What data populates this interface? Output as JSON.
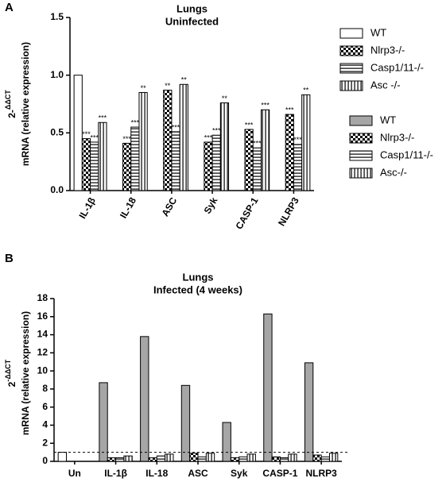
{
  "chart_data": [
    {
      "type": "bar",
      "panel": "A",
      "title": "Lungs",
      "subtitle": "Uninfected",
      "ylabel_base": "2-",
      "ylabel_sup": "ΔΔCT",
      "ylabel": "mRNA (relative expression)",
      "categories": [
        "IL-1β",
        "IL-18",
        "ASC",
        "Syk",
        "CASP-1",
        "NLRP3"
      ],
      "series": [
        {
          "name": "WT",
          "color": "#ffffff",
          "pattern": "solid",
          "values": [
            1.0,
            null,
            null,
            null,
            null,
            null
          ],
          "stars": [
            null,
            null,
            null,
            null,
            null,
            null
          ]
        },
        {
          "name": "Nlrp3-/-",
          "color": "#000000",
          "pattern": "checker",
          "values": [
            0.45,
            0.41,
            0.87,
            0.42,
            0.53,
            0.66
          ],
          "stars": [
            "***",
            "***",
            "**",
            "***",
            "***",
            "***"
          ]
        },
        {
          "name": "Casp1/11-/-",
          "color": "#000000",
          "pattern": "hlines",
          "values": [
            0.42,
            0.55,
            0.51,
            0.48,
            0.37,
            0.4
          ],
          "stars": [
            "***",
            "***",
            "***",
            "***",
            "***",
            "***"
          ]
        },
        {
          "name": "Asc -/-",
          "color": "#000000",
          "pattern": "vlines",
          "values": [
            0.59,
            0.85,
            0.92,
            0.76,
            0.7,
            0.83
          ],
          "stars": [
            "***",
            "**",
            "**",
            "**",
            "***",
            "**"
          ]
        }
      ],
      "ylim": [
        0,
        1.5
      ],
      "yticks": [
        {
          "value": 0,
          "label": "0.0"
        },
        {
          "value": 0.5,
          "label": "0.5"
        },
        {
          "value": 1,
          "label": "1.0"
        },
        {
          "value": 1.5,
          "label": "1.5"
        }
      ]
    },
    {
      "type": "bar",
      "panel": "B",
      "title": "Lungs",
      "subtitle": "Infected (4 weeks)",
      "ylabel_base": "2",
      "ylabel_sup": "-ΔΔCT",
      "ylabel": "mRNA (relative expression)",
      "categories": [
        "Un",
        "IL-1β",
        "IL-18",
        "ASC",
        "Syk",
        "CASP-1",
        "NLRP3"
      ],
      "series": [
        {
          "name": "WT",
          "color": "#a6a6a6",
          "pattern": "solid",
          "colors": [
            "#ffffff",
            "#a6a6a6",
            "#a6a6a6",
            "#a6a6a6",
            "#a6a6a6",
            "#a6a6a6",
            "#a6a6a6"
          ],
          "values": [
            1,
            8.7,
            13.8,
            8.4,
            4.3,
            16.3,
            10.9
          ]
        },
        {
          "name": "Nlrp3-/-",
          "color": "#000000",
          "pattern": "checker",
          "values": [
            null,
            0.4,
            0.4,
            0.9,
            0.4,
            0.5,
            0.7
          ]
        },
        {
          "name": "Casp1/11-/-",
          "color": "#000000",
          "pattern": "hlines",
          "values": [
            null,
            0.4,
            0.6,
            0.5,
            0.5,
            0.4,
            0.5
          ]
        },
        {
          "name": "Asc-/-",
          "color": "#000000",
          "pattern": "vlines",
          "values": [
            null,
            0.6,
            0.8,
            0.9,
            0.8,
            0.8,
            0.9
          ]
        }
      ],
      "reference_line": 1,
      "ylim": [
        0,
        18
      ],
      "yticks": [
        0,
        2,
        4,
        6,
        8,
        10,
        12,
        14,
        16,
        18
      ]
    }
  ]
}
